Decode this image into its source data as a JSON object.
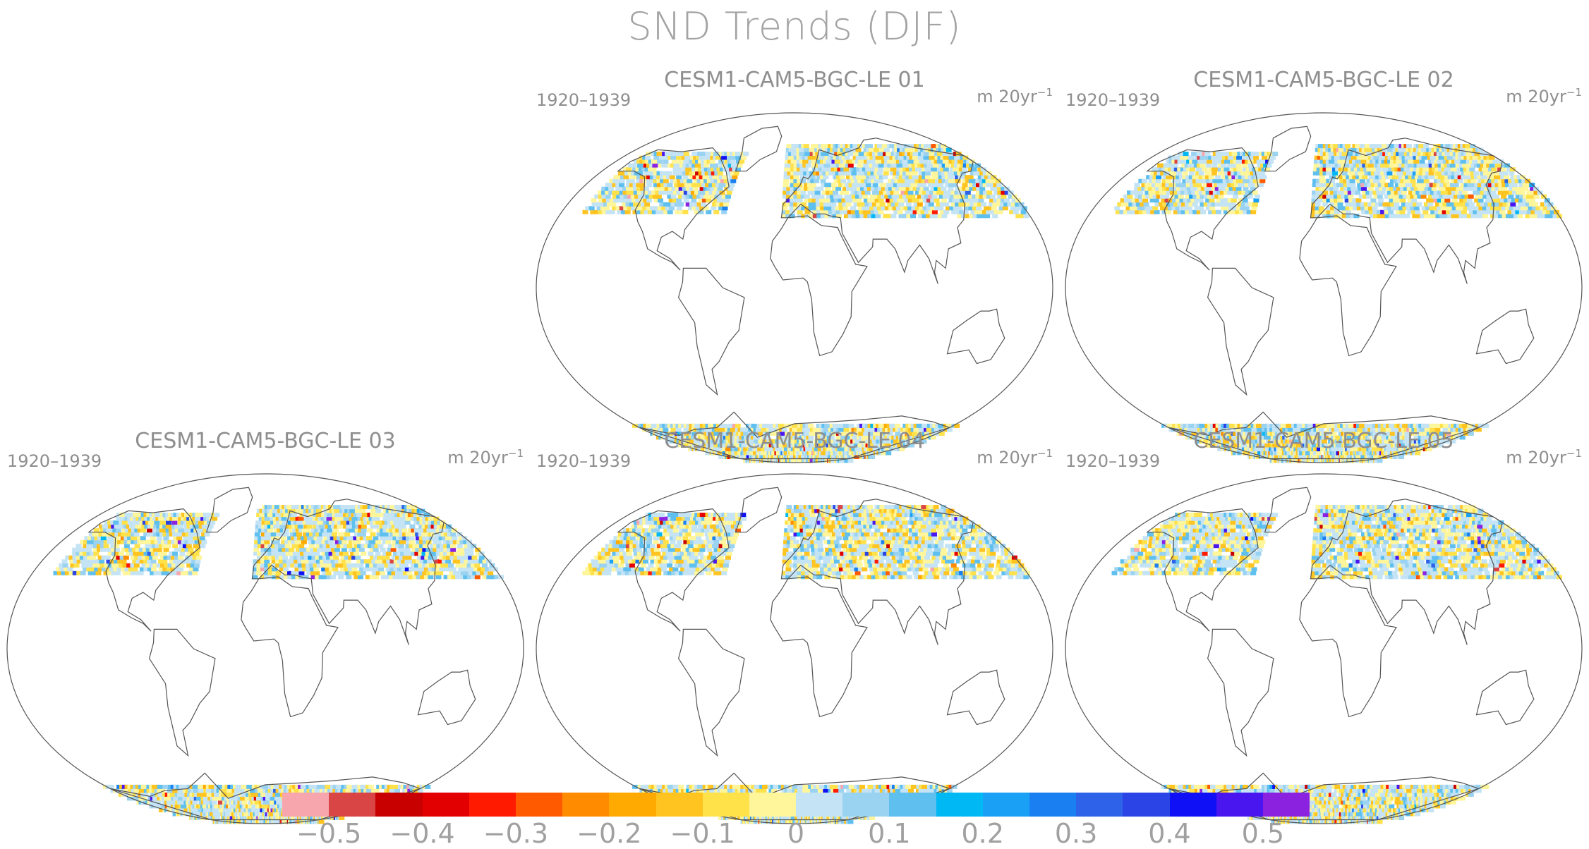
{
  "figure": {
    "title": "SND Trends (DJF)",
    "period": "1920–1939",
    "units": "m 20yr",
    "units_exponent": "−1"
  },
  "panels": [
    {
      "title": "CESM1-CAM5-BGC-LE 01"
    },
    {
      "title": "CESM1-CAM5-BGC-LE 02"
    },
    {
      "title": "CESM1-CAM5-BGC-LE 03"
    },
    {
      "title": "CESM1-CAM5-BGC-LE 04"
    },
    {
      "title": "CESM1-CAM5-BGC-LE 05"
    }
  ],
  "colorbar": {
    "colors": [
      "#f7a6ad",
      "#d94545",
      "#c80000",
      "#e30000",
      "#ff1a00",
      "#ff5a00",
      "#ff8c00",
      "#ffaa00",
      "#ffc420",
      "#ffe14a",
      "#fff59a",
      "#c4e4f6",
      "#9ad3f1",
      "#5fc0f0",
      "#00b8f3",
      "#1aa0f5",
      "#1a7ff0",
      "#2e62e8",
      "#2a44e6",
      "#0f10f5",
      "#4a16f0",
      "#8a22e0"
    ],
    "tick_labels": [
      "−0.5",
      "−0.4",
      "−0.3",
      "−0.2",
      "−0.1",
      "0",
      "0.1",
      "0.2",
      "0.3",
      "0.4",
      "0.5"
    ]
  }
}
